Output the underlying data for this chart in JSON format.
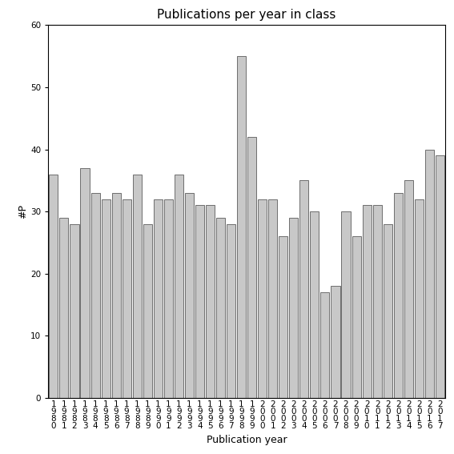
{
  "title": "Publications per year in class",
  "xlabel": "Publication year",
  "ylabel": "#P",
  "years": [
    "1980",
    "1981",
    "1982",
    "1983",
    "1984",
    "1985",
    "1986",
    "1987",
    "1988",
    "1989",
    "1990",
    "1991",
    "1992",
    "1993",
    "1994",
    "1995",
    "1996",
    "1997",
    "1998",
    "1999",
    "2000",
    "2001",
    "2002",
    "2003",
    "2004",
    "2005",
    "2006",
    "2007",
    "2008",
    "2009",
    "2010",
    "2011",
    "2012",
    "2013",
    "2014",
    "2015",
    "2016",
    "2017"
  ],
  "values": [
    36,
    29,
    28,
    37,
    33,
    32,
    33,
    32,
    36,
    28,
    32,
    32,
    36,
    33,
    31,
    31,
    29,
    28,
    55,
    42,
    32,
    32,
    26,
    29,
    35,
    30,
    17,
    18,
    30,
    26,
    31,
    31,
    28,
    33,
    35,
    32,
    40,
    39
  ],
  "ylim": [
    0,
    60
  ],
  "yticks": [
    0,
    10,
    20,
    30,
    40,
    50,
    60
  ],
  "bar_color": "#c8c8c8",
  "bar_edge_color": "#404040",
  "background_color": "#ffffff",
  "title_fontsize": 11,
  "label_fontsize": 9,
  "tick_fontsize": 7.5
}
